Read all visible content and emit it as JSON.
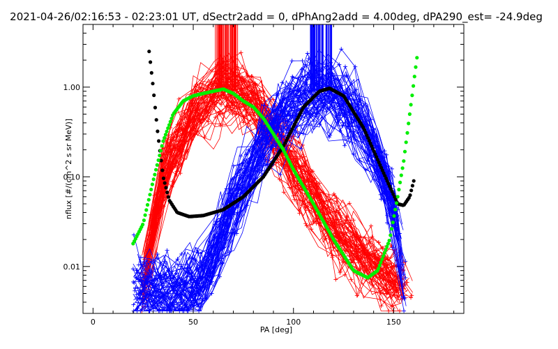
{
  "chart_data": {
    "type": "line",
    "title": "2021-04-26/02:16:53 - 02:23:01 UT, dSectr2add = 0, dPhAng2add = 4.00deg, dPA290_est= -24.9deg",
    "xlabel": "PA [deg]",
    "ylabel": "nflux [#/(cm^2 s sr MeV)]",
    "xlim": [
      -5,
      185
    ],
    "ylim": [
      0.003,
      5
    ],
    "yscale": "log",
    "grid": false,
    "legend": "none",
    "x_ticks": [
      0,
      50,
      100,
      150
    ],
    "x_tick_labels": [
      "0",
      "50",
      "100",
      "150"
    ],
    "y_ticks": [
      0.01,
      0.1,
      1.0
    ],
    "y_tick_labels": [
      "0.01",
      "0.10",
      "1.00"
    ],
    "colors": {
      "red": "#ff0000",
      "blue": "#0000ff",
      "black": "#000000",
      "green": "#00ee00"
    },
    "series": [
      {
        "color": "red",
        "kind": "sweeps",
        "description_points": [
          [
            25,
            0.006
          ],
          [
            35,
            0.1
          ],
          [
            50,
            0.5
          ],
          [
            65,
            1.0
          ],
          [
            80,
            0.7
          ],
          [
            100,
            0.12
          ],
          [
            120,
            0.025
          ],
          [
            140,
            0.01
          ],
          [
            155,
            0.006
          ]
        ]
      },
      {
        "color": "blue",
        "kind": "sweeps",
        "description_points": [
          [
            20,
            0.006
          ],
          [
            40,
            0.005
          ],
          [
            55,
            0.007
          ],
          [
            70,
            0.05
          ],
          [
            90,
            0.4
          ],
          [
            105,
            0.8
          ],
          [
            118,
            0.95
          ],
          [
            135,
            0.4
          ],
          [
            150,
            0.05
          ],
          [
            155,
            0.01
          ]
        ]
      },
      {
        "color": "black",
        "kind": "fit",
        "points": [
          [
            28,
            2.5
          ],
          [
            30,
            1.0
          ],
          [
            32,
            0.35
          ],
          [
            35,
            0.1
          ],
          [
            38,
            0.055
          ],
          [
            42,
            0.04
          ],
          [
            48,
            0.036
          ],
          [
            55,
            0.037
          ],
          [
            65,
            0.043
          ],
          [
            75,
            0.06
          ],
          [
            85,
            0.1
          ],
          [
            95,
            0.22
          ],
          [
            105,
            0.6
          ],
          [
            113,
            0.9
          ],
          [
            118,
            0.97
          ],
          [
            125,
            0.8
          ],
          [
            135,
            0.35
          ],
          [
            145,
            0.11
          ],
          [
            152,
            0.05
          ],
          [
            155,
            0.048
          ],
          [
            158,
            0.06
          ],
          [
            160,
            0.09
          ]
        ]
      },
      {
        "color": "green",
        "kind": "fit",
        "points": [
          [
            20,
            0.018
          ],
          [
            25,
            0.03
          ],
          [
            30,
            0.09
          ],
          [
            35,
            0.25
          ],
          [
            40,
            0.5
          ],
          [
            45,
            0.7
          ],
          [
            50,
            0.8
          ],
          [
            55,
            0.85
          ],
          [
            60,
            0.9
          ],
          [
            65,
            0.95
          ],
          [
            70,
            0.85
          ],
          [
            75,
            0.7
          ],
          [
            80,
            0.6
          ],
          [
            85,
            0.45
          ],
          [
            90,
            0.3
          ],
          [
            95,
            0.2
          ],
          [
            100,
            0.12
          ],
          [
            110,
            0.05
          ],
          [
            120,
            0.02
          ],
          [
            130,
            0.009
          ],
          [
            137,
            0.0075
          ],
          [
            142,
            0.009
          ],
          [
            148,
            0.02
          ],
          [
            152,
            0.06
          ],
          [
            155,
            0.15
          ],
          [
            158,
            0.5
          ],
          [
            162,
            2.5
          ]
        ]
      }
    ]
  }
}
